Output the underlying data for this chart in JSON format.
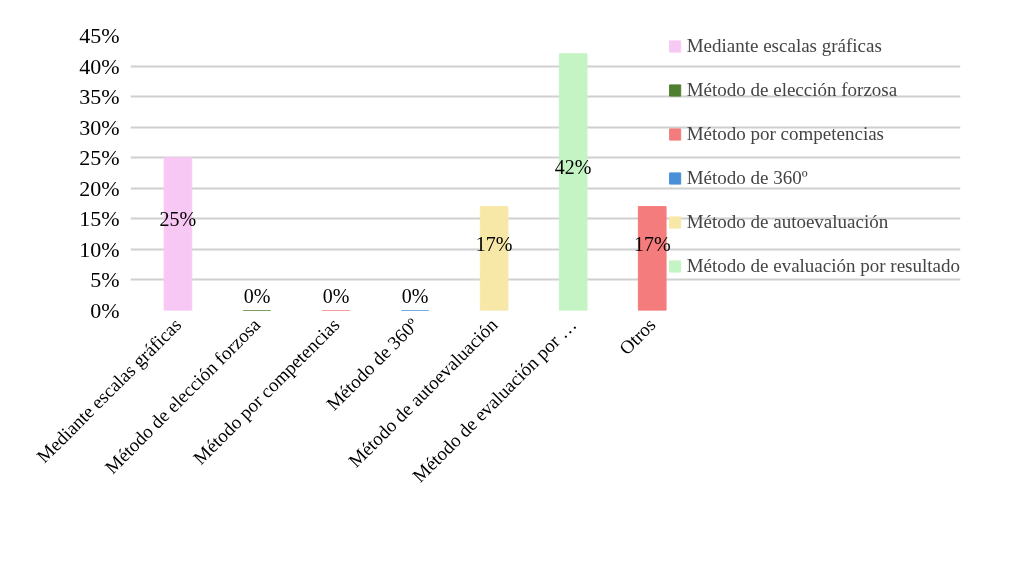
{
  "chart_data": {
    "type": "bar",
    "categories": [
      "Mediante escalas gráficas",
      "Método de elección forzosa",
      "Método por competencias",
      "Método de 360º",
      "Método de autoevaluación",
      "Método de evaluación por …",
      "Otros"
    ],
    "series": [
      {
        "name": "Mediante escalas gráficas",
        "color": "#f8c8f4",
        "values": [
          25,
          null,
          null,
          null,
          null,
          null,
          null
        ],
        "value_labels": [
          "25%",
          null,
          null,
          null,
          null,
          null,
          null
        ]
      },
      {
        "name": "Método de elección forzosa",
        "color": "#4f7f2f",
        "values": [
          null,
          0,
          null,
          null,
          null,
          null,
          null
        ],
        "value_labels": [
          null,
          "0%",
          null,
          null,
          null,
          null,
          null
        ]
      },
      {
        "name": "Método por competencias",
        "color": "#f47c7c",
        "values": [
          null,
          null,
          0,
          null,
          null,
          null,
          null
        ],
        "value_labels": [
          null,
          null,
          "0%",
          null,
          null,
          null,
          null
        ]
      },
      {
        "name": "Método de 360º",
        "color": "#4a90d9",
        "values": [
          null,
          null,
          null,
          0,
          null,
          null,
          null
        ],
        "value_labels": [
          null,
          null,
          null,
          "0%",
          null,
          null,
          null
        ]
      },
      {
        "name": "Método de autoevaluación",
        "color": "#f8e8a8",
        "values": [
          null,
          null,
          null,
          null,
          17,
          null,
          null
        ],
        "value_labels": [
          null,
          null,
          null,
          null,
          "17%",
          null,
          null
        ]
      },
      {
        "name": "Método de evaluación por resultado",
        "color": "#c4f4c4",
        "values": [
          null,
          null,
          null,
          null,
          null,
          42,
          null
        ],
        "value_labels": [
          null,
          null,
          null,
          null,
          null,
          "42%",
          null
        ]
      },
      {
        "color": "#f47c7c",
        "values": [
          null,
          null,
          null,
          null,
          null,
          null,
          17
        ],
        "value_labels": [
          null,
          null,
          null,
          null,
          null,
          null,
          "17%"
        ]
      }
    ],
    "ylim": [
      0,
      45
    ],
    "yticks": [
      {
        "value": 0,
        "label": "0%"
      },
      {
        "value": 5,
        "label": "5%"
      },
      {
        "value": 10,
        "label": "10%"
      },
      {
        "value": 15,
        "label": "15%"
      },
      {
        "value": 20,
        "label": "20%"
      },
      {
        "value": 25,
        "label": "25%"
      },
      {
        "value": 30,
        "label": "30%"
      },
      {
        "value": 35,
        "label": "35%"
      },
      {
        "value": 40,
        "label": "40%"
      },
      {
        "value": 45,
        "label": "45%"
      }
    ],
    "grid": "y",
    "legend": "right"
  }
}
